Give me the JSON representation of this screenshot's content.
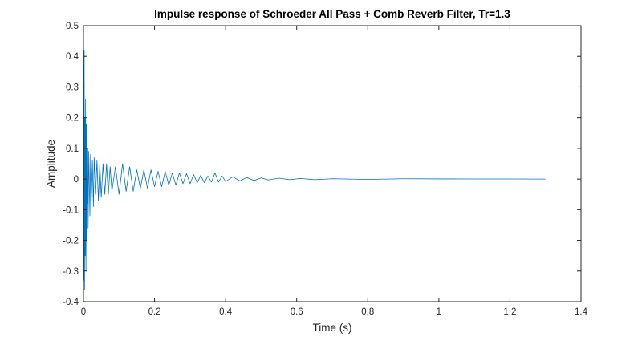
{
  "chart_data": {
    "type": "line",
    "title": "Impulse response of Schroeder All Pass + Comb Reverb Filter, Tr=1.3",
    "xlabel": "Time (s)",
    "ylabel": "Amplitude",
    "xlim": [
      0,
      1.4
    ],
    "ylim": [
      -0.4,
      0.5
    ],
    "x_ticks": [
      0,
      0.2,
      0.4,
      0.6,
      0.8,
      1,
      1.2,
      1.4
    ],
    "x_tick_labels": [
      "0",
      "0.2",
      "0.4",
      "0.6",
      "0.8",
      "1",
      "1.2",
      "1.4"
    ],
    "y_ticks": [
      -0.4,
      -0.3,
      -0.2,
      -0.1,
      0,
      0.1,
      0.2,
      0.3,
      0.4,
      0.5
    ],
    "y_tick_labels": [
      "-0.4",
      "-0.3",
      "-0.2",
      "-0.1",
      "0",
      "0.1",
      "0.2",
      "0.3",
      "0.4",
      "0.5"
    ],
    "grid": false,
    "series": [
      {
        "color": "#0072BD",
        "x": [
          0,
          0.001,
          0.002,
          0.003,
          0.004,
          0.005,
          0.006,
          0.007,
          0.008,
          0.009,
          0.01,
          0.011,
          0.012,
          0.013,
          0.015,
          0.018,
          0.02,
          0.022,
          0.025,
          0.028,
          0.03,
          0.034,
          0.038,
          0.042,
          0.046,
          0.05,
          0.055,
          0.06,
          0.065,
          0.07,
          0.075,
          0.08,
          0.09,
          0.1,
          0.11,
          0.12,
          0.13,
          0.14,
          0.15,
          0.16,
          0.17,
          0.18,
          0.19,
          0.2,
          0.21,
          0.22,
          0.23,
          0.24,
          0.25,
          0.26,
          0.27,
          0.28,
          0.29,
          0.3,
          0.31,
          0.32,
          0.33,
          0.34,
          0.35,
          0.36,
          0.37,
          0.38,
          0.39,
          0.4,
          0.42,
          0.44,
          0.46,
          0.48,
          0.5,
          0.52,
          0.55,
          0.58,
          0.61,
          0.65,
          0.7,
          0.8,
          0.9,
          1.0,
          1.1,
          1.2,
          1.3
        ],
        "y": [
          0.5,
          -0.33,
          0.42,
          -0.36,
          0.2,
          -0.25,
          0.26,
          -0.3,
          0.18,
          -0.2,
          0.12,
          -0.08,
          0.1,
          -0.16,
          0.09,
          -0.12,
          0.08,
          -0.07,
          0.06,
          -0.09,
          0.07,
          -0.05,
          0.06,
          -0.07,
          0.05,
          -0.06,
          0.05,
          -0.05,
          0.05,
          -0.05,
          0.04,
          -0.04,
          0.04,
          -0.05,
          0.05,
          -0.04,
          0.04,
          -0.04,
          0.03,
          -0.03,
          0.03,
          -0.03,
          0.03,
          -0.025,
          0.025,
          -0.025,
          0.025,
          -0.02,
          0.02,
          -0.02,
          0.02,
          -0.015,
          0.018,
          -0.015,
          0.015,
          -0.012,
          0.012,
          -0.012,
          0.01,
          -0.01,
          0.02,
          -0.01,
          0.01,
          -0.008,
          0.007,
          -0.006,
          0.005,
          -0.005,
          0.004,
          -0.003,
          0.003,
          -0.002,
          0.002,
          -0.002,
          0.001,
          -0.001,
          0.001,
          0.0005,
          0.0003,
          0.0002,
          0
        ]
      }
    ]
  }
}
